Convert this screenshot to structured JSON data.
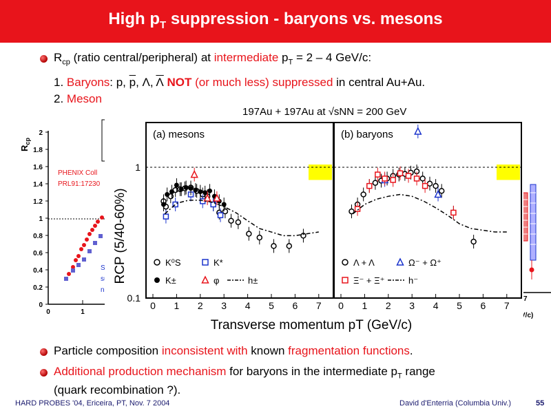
{
  "header": {
    "title_part1": "High p",
    "title_sub": "T",
    "title_part2": " suppression - baryons vs. mesons"
  },
  "intro": {
    "rcp": "R",
    "rcp_sub": "cp",
    "text1": " (ratio central/peripheral) at ",
    "highlight": "intermediate",
    "text2": " p",
    "text2_sub": "T",
    "text3": " = 2 – 4 GeV/c:"
  },
  "item1": {
    "num": "1. ",
    "baryons": "Baryons",
    "species": ":  p, ",
    "pbar": "p",
    "lam": ", Λ, ",
    "lambar": "Λ",
    "not": " NOT",
    "mid": " (or much less) suppressed",
    "tail": " in central Au+Au."
  },
  "item2": {
    "num": "2. ",
    "mesons": "Meson"
  },
  "left_plot": {
    "ylabel": "R",
    "ylabel_sub": "cp",
    "yticks": [
      "0",
      "0.2",
      "0.4",
      "0.6",
      "0.8",
      "1",
      "1.2",
      "1.4",
      "1.6",
      "1.8",
      "2"
    ],
    "xticks": [
      "0",
      "1"
    ],
    "phenix1": "PHENIX Coll",
    "phenix2": "PRL91:17230",
    "note1": "S",
    "note2": "su",
    "note3": "nu"
  },
  "right_plot": {
    "xlabel": "V/c)",
    "xtick": "7"
  },
  "chart_data": {
    "type": "scatter",
    "title": "197Au + 197Au at √sNN = 200 GeV",
    "ylabel": "RCP (5/40-60%)",
    "xlabel": "Transverse momentum pT (GeV/c)",
    "ylim": [
      0.1,
      2.2
    ],
    "yscale": "log",
    "xlim": [
      0,
      7.5
    ],
    "yticks": [
      "0.1",
      "1"
    ],
    "xticks": [
      "0",
      "1",
      "2",
      "3",
      "4",
      "5",
      "6",
      "7"
    ],
    "panels": [
      {
        "label": "(a) mesons",
        "legend": [
          "K⁰S",
          "K*",
          "K±",
          "φ",
          "h±"
        ],
        "series": [
          {
            "name": "K0S",
            "marker": "open-circle",
            "color": "#000000",
            "x": [
              0.45,
              0.55,
              0.75,
              0.95,
              1.15,
              1.35,
              1.6,
              1.85,
              2.1,
              2.3,
              2.55,
              2.8,
              3.05,
              3.3,
              3.6,
              4.05,
              4.5,
              5.1,
              5.75,
              6.35
            ],
            "y": [
              0.55,
              0.5,
              0.6,
              0.67,
              0.68,
              0.69,
              0.7,
              0.66,
              0.62,
              0.6,
              0.52,
              0.45,
              0.46,
              0.39,
              0.38,
              0.31,
              0.29,
              0.25,
              0.25,
              0.3
            ]
          },
          {
            "name": "K*",
            "marker": "open-square",
            "color": "#1a33cc",
            "x": [
              0.55,
              0.95,
              1.6,
              2.1,
              2.55,
              2.85
            ],
            "y": [
              0.42,
              0.52,
              0.62,
              0.55,
              0.52,
              0.43
            ]
          },
          {
            "name": "K±",
            "marker": "filled-circle",
            "color": "#000000",
            "x": [
              0.45,
              0.6,
              0.8,
              1.0,
              1.2,
              1.4,
              1.6,
              1.8,
              2.0,
              2.2,
              2.4,
              2.6,
              2.8,
              3.0
            ],
            "y": [
              0.52,
              0.62,
              0.65,
              0.73,
              0.68,
              0.7,
              0.69,
              0.67,
              0.65,
              0.64,
              0.66,
              0.6,
              0.55,
              0.52
            ]
          },
          {
            "name": "φ",
            "marker": "open-triangle",
            "color": "#e8141b",
            "x": [
              1.75,
              2.3,
              2.7
            ],
            "y": [
              0.88,
              0.58,
              0.58
            ]
          },
          {
            "name": "h±",
            "marker": "dashdot-line",
            "color": "#000000",
            "x": [
              0.5,
              1.0,
              1.5,
              2.0,
              2.5,
              3.0,
              3.5,
              4.0,
              4.5,
              5.0,
              5.5,
              6.0,
              6.5,
              7.0
            ],
            "y": [
              0.44,
              0.53,
              0.56,
              0.56,
              0.54,
              0.5,
              0.45,
              0.39,
              0.34,
              0.32,
              0.3,
              0.3,
              0.31,
              0.32
            ]
          }
        ]
      },
      {
        "label": "(b) baryons",
        "legend": [
          "Λ + Λ",
          "Ω⁻ + Ω⁺",
          "Ξ⁻ + Ξ⁺",
          "h⁻"
        ],
        "series": [
          {
            "name": "Λ+Λbar",
            "marker": "open-circle",
            "color": "#000000",
            "x": [
              0.45,
              0.7,
              0.95,
              1.2,
              1.45,
              1.7,
              1.95,
              2.2,
              2.45,
              2.7,
              2.95,
              3.2,
              3.45,
              3.75,
              4.0,
              4.25,
              4.75,
              5.6
            ],
            "y": [
              0.46,
              0.52,
              0.62,
              0.72,
              0.76,
              0.79,
              0.82,
              0.86,
              0.88,
              0.89,
              0.91,
              0.93,
              0.82,
              0.75,
              0.72,
              0.66,
              0.45,
              0.27
            ]
          },
          {
            "name": "Ω+Ωbar",
            "marker": "open-triangle",
            "color": "#1a33cc",
            "x": [
              1.85,
              3.25,
              4.1
            ],
            "y": [
              0.8,
              1.88,
              0.62
            ]
          },
          {
            "name": "Ξ+Ξbar",
            "marker": "open-square",
            "color": "#e8141b",
            "x": [
              0.7,
              1.2,
              1.55,
              1.85,
              2.2,
              2.5,
              2.85,
              3.2,
              3.55,
              4.75
            ],
            "y": [
              0.48,
              0.72,
              0.88,
              0.82,
              0.8,
              0.9,
              0.86,
              0.82,
              0.72,
              0.45
            ]
          },
          {
            "name": "h−",
            "marker": "dashdot-line",
            "color": "#000000",
            "x": [
              0.5,
              1.0,
              1.5,
              2.0,
              2.5,
              3.0,
              3.5,
              4.0,
              4.5,
              5.0,
              5.5,
              6.0,
              6.5,
              7.0
            ],
            "y": [
              0.44,
              0.52,
              0.57,
              0.6,
              0.62,
              0.6,
              0.55,
              0.49,
              0.43,
              0.37,
              0.34,
              0.33,
              0.32,
              0.32
            ]
          }
        ]
      }
    ]
  },
  "bottom": {
    "p1_a": "Particle composition ",
    "p1_b": "inconsistent with",
    "p1_c": " known ",
    "p1_d": "fragmentation functions",
    "p1_e": ".",
    "p2_a": "Additional production mechanism",
    "p2_b": " for baryons in the intermediate p",
    "p2_sub": "T",
    "p2_c": " range",
    "p3": "(quark recombination ?)."
  },
  "footer": {
    "left": "HARD PROBES '04, Ericeira, PT, Nov. 7 2004",
    "right": "David d'Enterria (Columbia Univ.)",
    "page": "55"
  },
  "colors": {
    "accent": "#e8141b",
    "blue": "#1a33cc",
    "yellow_band": "#ffff00"
  }
}
